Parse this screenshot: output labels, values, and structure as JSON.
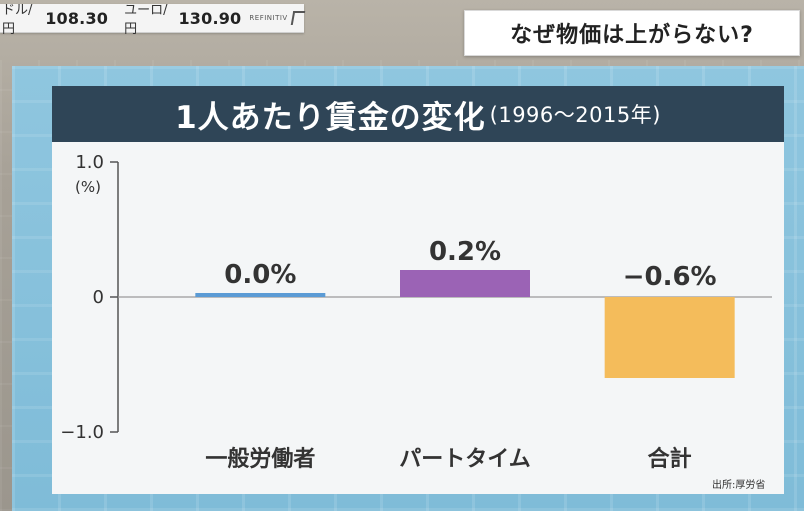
{
  "ticker": {
    "pair1_label": "ドル/円",
    "pair1_value": "108.30",
    "pair2_label": "ユーロ/円",
    "pair2_value": "130.90",
    "brand": "REFINITIV"
  },
  "topic": {
    "title": "なぜ物価は上がらない?"
  },
  "colors": {
    "title_bar": "#2f4557",
    "bar_general": "#5b9bd5",
    "bar_parttime": "#9b63b5",
    "bar_total": "#f4bc5b"
  },
  "chart_data": {
    "type": "bar",
    "title": "1人あたり賃金の変化",
    "subtitle": "(1996〜2015年)",
    "ylabel": "(%)",
    "ylim": [
      -1.0,
      1.0
    ],
    "yticks": [
      "1.0",
      "0",
      "−1.0"
    ],
    "ytick_values": [
      1.0,
      0,
      -1.0
    ],
    "categories": [
      "一般労働者",
      "パートタイム",
      "合計"
    ],
    "values": [
      0.0,
      0.2,
      -0.6
    ],
    "data_labels": [
      "0.0%",
      "0.2%",
      "−0.6%"
    ],
    "colors": [
      "#5b9bd5",
      "#9b63b5",
      "#f4bc5b"
    ],
    "grid": false,
    "source": "出所:厚労省"
  }
}
